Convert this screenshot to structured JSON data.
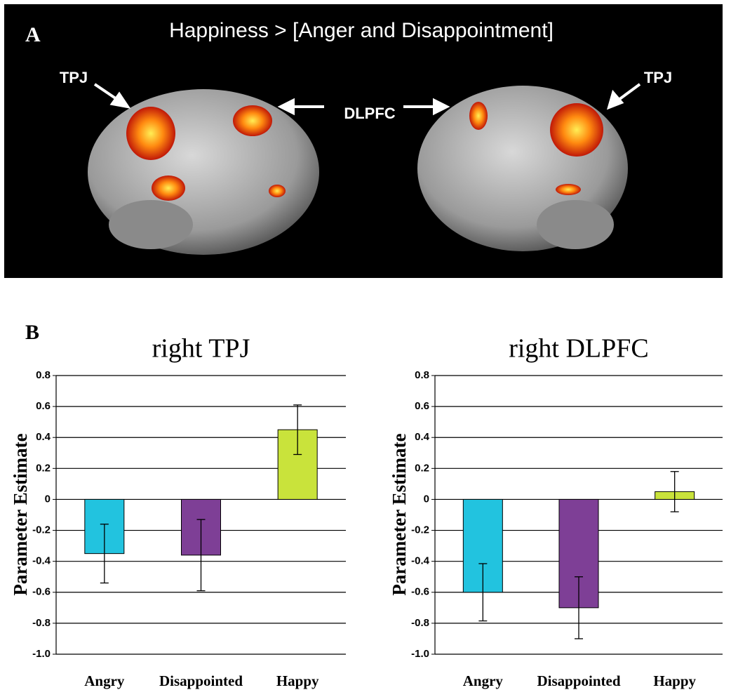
{
  "panel_a": {
    "letter": "A",
    "title": "Happiness > [Anger and Disappointment]",
    "labels": [
      "TPJ",
      "DLPFC",
      "TPJ"
    ]
  },
  "panel_b": {
    "letter": "B"
  },
  "chart_data": [
    {
      "type": "bar",
      "title": "right TPJ",
      "ylabel": "Parameter Estimate",
      "categories": [
        "Angry",
        "Disappointed",
        "Happy"
      ],
      "values": [
        -0.35,
        -0.36,
        0.45
      ],
      "errors": [
        0.19,
        0.23,
        0.16
      ],
      "colors": [
        "#22c3df",
        "#7e3f96",
        "#c9e33b"
      ],
      "ylim": [
        -1,
        0.8
      ],
      "yticks": [
        {
          "value": -1,
          "label": "-1.0"
        },
        -0.8,
        -0.6,
        -0.4,
        -0.2,
        0,
        0.2,
        0.4,
        0.6,
        0.8
      ],
      "grid": true
    },
    {
      "type": "bar",
      "title": "right DLPFC",
      "ylabel": "Parameter Estimate",
      "categories": [
        "Angry",
        "Disappointed",
        "Happy"
      ],
      "values": [
        -0.6,
        -0.7,
        0.05
      ],
      "errors": [
        0.185,
        0.2,
        0.13
      ],
      "colors": [
        "#22c3df",
        "#7e3f96",
        "#c9e33b"
      ],
      "ylim": [
        -1,
        0.8
      ],
      "yticks": [
        {
          "value": -1,
          "label": "-1.0"
        },
        -0.8,
        -0.6,
        -0.4,
        -0.2,
        0,
        0.2,
        0.4,
        0.6,
        0.8
      ],
      "grid": true
    }
  ]
}
